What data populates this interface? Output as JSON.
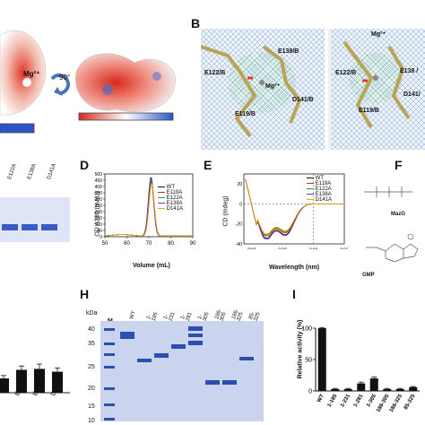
{
  "panels": {
    "A": {
      "mg_label": "Mg²⁺",
      "rotation_label": "90°"
    },
    "B": {
      "label": "B",
      "residues_left": [
        "E138/B",
        "E122/B",
        "Mg²⁺",
        "E119/B",
        "D141/B"
      ],
      "residues_right": [
        "Mg²⁺",
        "E122/B",
        "E138 /",
        "E119/B",
        "D141/"
      ]
    },
    "C": {
      "lanes": [
        "E122A",
        "E138A",
        "D141A"
      ]
    },
    "D": {
      "label": "D",
      "ylabel": "OD A280 (mAU)",
      "xlabel": "Volume (mL)",
      "legend": [
        "WT",
        "E119A",
        "E122A",
        "E138A",
        "D141A"
      ]
    },
    "E": {
      "label": "E",
      "ylabel": "CD (mdeg)",
      "xlabel": "Wavelength (nm)",
      "legend": [
        "WT",
        "E119A",
        "E122A",
        "E138A",
        "D141A"
      ]
    },
    "F": {
      "label": "F",
      "mol1": "MazG",
      "mol2": "GMP"
    },
    "G": {
      "lanes": [
        "E122A",
        "E138A",
        "D141A"
      ]
    },
    "H": {
      "label": "H",
      "unit": "kDa",
      "marker_label": "M",
      "lanes": [
        "WT",
        "1-185",
        "1-231",
        "1-281",
        "1-305",
        "186-305",
        "186-325",
        "85-325"
      ],
      "markers": [
        "40",
        "35",
        "25",
        "20",
        "15",
        "10"
      ]
    },
    "I": {
      "label": "I",
      "ylabel": "Relative activity (%)"
    }
  },
  "colors": {
    "WT": "#111111",
    "E119A": "#d62728",
    "E122A": "#2ca02c",
    "E138A": "#7b2fbf",
    "D141A": "#e0a800",
    "gel_band": "#2f4fb0",
    "gel_bg": "#c9d3ee",
    "bar": "#111111"
  },
  "chart_data": [
    {
      "id": "D",
      "type": "line",
      "xlabel": "Volume (mL)",
      "ylabel": "OD A280 (mAU)",
      "xlim": [
        50,
        90
      ],
      "ylim": [
        0,
        500
      ],
      "xticks": [
        50,
        60,
        70,
        80,
        90
      ],
      "yticks": [
        0,
        50,
        100,
        150,
        200,
        250,
        300,
        350,
        400,
        450,
        500
      ],
      "series": [
        {
          "name": "WT",
          "peak_x": 71,
          "peak_y": 470
        },
        {
          "name": "E119A",
          "peak_x": 71.2,
          "peak_y": 430
        },
        {
          "name": "E122A",
          "peak_x": 71.1,
          "peak_y": 440
        },
        {
          "name": "E138A",
          "peak_x": 71.0,
          "peak_y": 455
        },
        {
          "name": "D141A",
          "peak_x": 71.3,
          "peak_y": 420
        }
      ]
    },
    {
      "id": "E",
      "type": "line",
      "xlabel": "Wavelength (nm)",
      "ylabel": "CD (mdeg)",
      "xlim": [
        195,
        260
      ],
      "ylim": [
        -40,
        30
      ],
      "xticks": [
        200,
        220,
        240,
        260
      ],
      "yticks": [
        -40,
        -20,
        0,
        20
      ],
      "series": [
        {
          "name": "WT",
          "min_y": -33
        },
        {
          "name": "E119A",
          "min_y": -31
        },
        {
          "name": "E122A",
          "min_y": -30
        },
        {
          "name": "E138A",
          "min_y": -34
        },
        {
          "name": "D141A",
          "min_y": -29
        }
      ]
    },
    {
      "id": "G",
      "type": "bar",
      "categories": [
        "",
        "E122A",
        "E138A",
        "D141A"
      ],
      "values": [
        15,
        24,
        25,
        22
      ],
      "errors": [
        3,
        4,
        5,
        4
      ],
      "ylim": [
        0,
        100
      ]
    },
    {
      "id": "I",
      "type": "bar",
      "ylabel": "Relative activity (%)",
      "categories": [
        "WT",
        "1-185",
        "1-231",
        "1-281",
        "1-305",
        "186-305",
        "186-325",
        "85-325"
      ],
      "values": [
        100,
        3,
        3,
        12,
        20,
        3,
        3,
        6
      ],
      "errors": [
        1,
        1,
        1,
        2,
        2,
        1,
        1,
        1
      ],
      "ylim": [
        0,
        100
      ],
      "yticks": [
        0,
        50,
        100
      ]
    }
  ]
}
